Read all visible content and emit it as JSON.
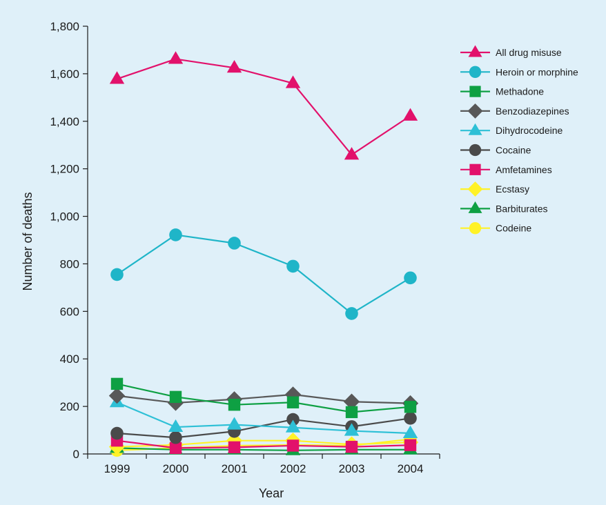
{
  "chart_data": {
    "type": "line",
    "title": "",
    "xlabel": "Year",
    "ylabel": "Number of deaths",
    "ylim": [
      0,
      1800
    ],
    "yticks": [
      "0",
      "200",
      "400",
      "600",
      "800",
      "1,000",
      "1,200",
      "1,400",
      "1,600",
      "1,800"
    ],
    "yticks_values": [
      0,
      200,
      400,
      600,
      800,
      1000,
      1200,
      1400,
      1600,
      1800
    ],
    "categories": [
      "1999",
      "2000",
      "2001",
      "2002",
      "2003",
      "2004"
    ],
    "grid": false,
    "legend_position": "top-right",
    "series": [
      {
        "name": "All drug misuse",
        "color": "#e2116b",
        "marker": "triangle",
        "values": [
          1578,
          1662,
          1625,
          1560,
          1259,
          1423
        ]
      },
      {
        "name": "Heroin or morphine",
        "color": "#1fb5c8",
        "marker": "circle",
        "values": [
          755,
          922,
          887,
          790,
          591,
          741
        ]
      },
      {
        "name": "Methadone",
        "color": "#0ea043",
        "marker": "square",
        "values": [
          295,
          240,
          207,
          217,
          176,
          198
        ]
      },
      {
        "name": "Benzodiazepines",
        "color": "#585858",
        "marker": "diamond",
        "values": [
          245,
          215,
          230,
          250,
          220,
          213
        ]
      },
      {
        "name": "Dihydrocodeine",
        "color": "#2ec0d6",
        "marker": "triangle",
        "values": [
          217,
          113,
          123,
          111,
          97,
          87
        ]
      },
      {
        "name": "Cocaine",
        "color": "#4a4a4a",
        "marker": "circle",
        "values": [
          87,
          69,
          95,
          145,
          115,
          150
        ]
      },
      {
        "name": "Amfetamines",
        "color": "#e2116b",
        "marker": "square",
        "values": [
          56,
          25,
          28,
          35,
          30,
          37
        ]
      },
      {
        "name": "Ecstasy",
        "color": "#fff227",
        "marker": "diamond",
        "values": [
          30,
          38,
          56,
          56,
          40,
          49
        ]
      },
      {
        "name": "Barbiturates",
        "color": "#0ea043",
        "marker": "triangle",
        "values": [
          25,
          18,
          18,
          15,
          18,
          18
        ]
      },
      {
        "name": "Codeine",
        "color": "#fff227",
        "marker": "circle",
        "values": [
          15,
          25,
          35,
          38,
          35,
          62
        ]
      }
    ]
  }
}
